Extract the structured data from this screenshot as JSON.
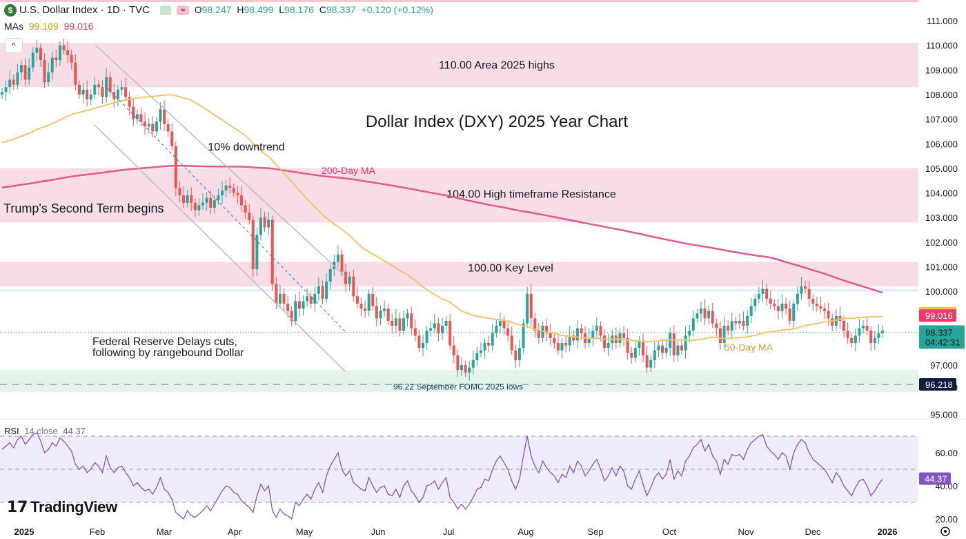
{
  "header": {
    "symbol": "U.S. Dollar Index · 1D · TVC",
    "symbol_badge": "$",
    "open_label": "O",
    "open": "98.247",
    "high_label": "H",
    "high": "98.499",
    "low_label": "L",
    "low": "98.176",
    "close_label": "C",
    "close": "98.337",
    "change": "+0.120 (+0.12%)",
    "mas_label": "MAs",
    "ma50_value": "99.109",
    "ma200_value": "99.016",
    "collapse_icon": "^"
  },
  "chart_data": {
    "type": "candlestick",
    "title": "Dollar Index (DXY) 2025 Year Chart",
    "y_axis": {
      "ticks": [
        "111.000",
        "110.000",
        "109.000",
        "108.000",
        "107.000",
        "106.000",
        "105.000",
        "104.000",
        "103.000",
        "102.000",
        "101.000",
        "100.000",
        "97.000",
        "95.000"
      ],
      "tick_values": [
        111,
        110,
        109,
        108,
        107,
        106,
        105,
        104,
        103,
        102,
        101,
        100,
        97,
        95
      ],
      "range": [
        94.6,
        111.5
      ]
    },
    "x_axis": {
      "labels": [
        "2025",
        "Feb",
        "Mar",
        "Apr",
        "May",
        "Jun",
        "Jul",
        "Aug",
        "Sep",
        "Oct",
        "Nov",
        "Dec",
        "2026"
      ],
      "months_index": [
        0,
        1,
        2,
        3,
        4,
        5,
        6,
        7,
        8,
        9,
        10,
        11,
        12
      ]
    },
    "price_tags": [
      {
        "name": "ma50-tag",
        "value": 99.109,
        "label": "99.109",
        "color": "#f6c343",
        "text_color": "#131722"
      },
      {
        "name": "ma200-tag",
        "value": 99.016,
        "label": "99.016",
        "color": "#f0386b",
        "text_color": "#ffffff"
      },
      {
        "name": "last-price-tag",
        "value": 98.337,
        "label": "98.337",
        "sub": "04:42:31",
        "color": "#26a69a",
        "text_color": "#131722"
      },
      {
        "name": "low-tag",
        "value": 96.218,
        "label": "96.218",
        "color": "#0d1b3e",
        "text_color": "#ffffff"
      }
    ],
    "zones": [
      {
        "name": "zone-110",
        "from": 108.3,
        "to": 110.1,
        "color": "#f8dde6",
        "label": "110.00 Area 2025 highs"
      },
      {
        "name": "zone-104",
        "from": 102.8,
        "to": 105.0,
        "color": "#f8dde6",
        "label": "104.00 High timeframe Resistance"
      },
      {
        "name": "zone-100",
        "from": 100.2,
        "to": 101.2,
        "color": "#f8dde6",
        "label": "100.00 Key Level"
      },
      {
        "name": "zone-96",
        "from": 95.9,
        "to": 96.8,
        "color": "#e3f4ea",
        "label": "96.22 September FOMC 2025 lows"
      }
    ],
    "annotations": [
      {
        "name": "downtrend-label",
        "text": "10% downtrend"
      },
      {
        "name": "ma200-label",
        "text": "200-Day MA"
      },
      {
        "name": "trump-label",
        "text": "Trump's Second Term begins"
      },
      {
        "name": "fed-label-1",
        "text": "Federal Reserve Delays cuts,"
      },
      {
        "name": "fed-label-2",
        "text": "following by rangebound Dollar"
      },
      {
        "name": "ma50-label",
        "text": "50-Day MA"
      }
    ],
    "candles_close": [
      108.1,
      108.3,
      108.6,
      108.4,
      108.9,
      109.2,
      108.6,
      109.1,
      109.7,
      109.9,
      109.4,
      108.5,
      108.9,
      109.5,
      109.4,
      110.0,
      109.8,
      109.6,
      109.3,
      108.4,
      108.0,
      108.2,
      107.8,
      108.0,
      108.4,
      108.3,
      107.9,
      108.7,
      108.1,
      107.8,
      108.2,
      108.3,
      107.9,
      107.5,
      107.0,
      107.2,
      106.9,
      106.7,
      106.8,
      106.5,
      106.9,
      107.4,
      106.8,
      106.5,
      105.9,
      104.2,
      103.9,
      103.6,
      103.9,
      103.6,
      103.3,
      103.5,
      103.6,
      103.8,
      103.4,
      103.7,
      103.9,
      104.1,
      104.3,
      104.2,
      104.0,
      103.9,
      103.5,
      103.2,
      102.9,
      100.9,
      102.3,
      103.0,
      102.6,
      102.9,
      100.3,
      99.5,
      99.9,
      99.5,
      99.2,
      98.8,
      99.6,
      99.3,
      99.6,
      99.8,
      99.5,
      99.9,
      100.2,
      99.7,
      100.4,
      100.9,
      101.2,
      101.5,
      100.8,
      100.3,
      100.6,
      99.8,
      99.5,
      99.3,
      99.2,
      99.9,
      99.4,
      98.9,
      99.2,
      99.3,
      98.8,
      98.6,
      98.9,
      98.4,
      98.9,
      99.1,
      98.5,
      98.2,
      97.7,
      97.9,
      98.4,
      98.5,
      98.7,
      98.3,
      98.6,
      98.8,
      97.8,
      97.4,
      96.8,
      97.0,
      96.7,
      96.9,
      97.2,
      97.5,
      97.6,
      97.9,
      97.8,
      98.3,
      98.6,
      98.8,
      98.5,
      98.2,
      97.6,
      97.2,
      97.7,
      98.7,
      99.9,
      98.9,
      98.4,
      98.1,
      98.6,
      98.3,
      98.1,
      97.9,
      97.6,
      97.9,
      97.8,
      98.2,
      98.0,
      98.5,
      98.3,
      97.9,
      98.1,
      98.4,
      98.6,
      98.2,
      97.7,
      97.9,
      98.2,
      97.9,
      98.3,
      98.1,
      97.5,
      97.3,
      97.7,
      98.0,
      97.4,
      96.9,
      97.2,
      97.6,
      97.8,
      97.5,
      97.7,
      98.3,
      97.4,
      97.8,
      97.6,
      98.2,
      98.4,
      98.9,
      99.1,
      99.3,
      98.9,
      99.2,
      98.7,
      98.5,
      97.9,
      98.6,
      98.4,
      98.8,
      98.7,
      98.8,
      98.6,
      99.0,
      99.4,
      99.7,
      99.9,
      100.1,
      99.7,
      99.5,
      99.4,
      99.2,
      99.5,
      99.3,
      98.8,
      99.5,
      99.9,
      100.2,
      100.1,
      99.7,
      99.5,
      99.4,
      99.3,
      99.2,
      98.9,
      98.6,
      99.0,
      98.8,
      98.4,
      98.1,
      97.9,
      98.2,
      98.5,
      98.6,
      98.4,
      97.9,
      98.1,
      98.3,
      98.4
    ]
  },
  "rsi": {
    "label": "RSI",
    "params": "14 close",
    "value": "44.37",
    "ticks": [
      "60.00",
      "40.00",
      "20.00"
    ],
    "tick_values": [
      60,
      40,
      20
    ],
    "upper": 70,
    "middle": 50,
    "lower": 30,
    "series": [
      62,
      64,
      66,
      63,
      68,
      70,
      65,
      68,
      71,
      72,
      67,
      60,
      62,
      66,
      64,
      69,
      67,
      64,
      61,
      53,
      50,
      52,
      48,
      50,
      54,
      52,
      48,
      58,
      51,
      48,
      51,
      52,
      48,
      45,
      40,
      42,
      39,
      37,
      38,
      35,
      39,
      45,
      38,
      36,
      32,
      24,
      22,
      20,
      25,
      22,
      21,
      23,
      25,
      28,
      25,
      29,
      33,
      37,
      40,
      39,
      36,
      35,
      31,
      29,
      27,
      24,
      34,
      41,
      37,
      40,
      25,
      21,
      26,
      23,
      22,
      20,
      30,
      28,
      32,
      35,
      32,
      38,
      42,
      36,
      46,
      52,
      56,
      60,
      50,
      46,
      49,
      42,
      40,
      38,
      37,
      45,
      40,
      36,
      39,
      40,
      35,
      34,
      38,
      33,
      40,
      43,
      37,
      34,
      30,
      33,
      40,
      41,
      43,
      38,
      42,
      45,
      33,
      30,
      26,
      29,
      26,
      29,
      33,
      38,
      39,
      44,
      43,
      50,
      55,
      58,
      54,
      50,
      43,
      38,
      44,
      58,
      70,
      58,
      52,
      48,
      55,
      51,
      48,
      46,
      42,
      47,
      45,
      52,
      48,
      55,
      52,
      46,
      49,
      53,
      56,
      50,
      43,
      46,
      51,
      46,
      52,
      49,
      40,
      38,
      44,
      49,
      41,
      34,
      39,
      45,
      48,
      44,
      47,
      56,
      44,
      49,
      46,
      55,
      58,
      63,
      65,
      68,
      61,
      65,
      58,
      55,
      47,
      56,
      53,
      59,
      58,
      59,
      56,
      62,
      66,
      68,
      70,
      71,
      64,
      61,
      59,
      56,
      60,
      58,
      50,
      60,
      65,
      68,
      66,
      60,
      56,
      54,
      52,
      50,
      46,
      42,
      48,
      45,
      40,
      37,
      34,
      39,
      43,
      44,
      40,
      34,
      37,
      41,
      44
    ]
  },
  "time_axis": {
    "settings_icon": "gear-icon"
  },
  "branding": {
    "logo_text": "TradingView",
    "logo_mark": "17"
  }
}
